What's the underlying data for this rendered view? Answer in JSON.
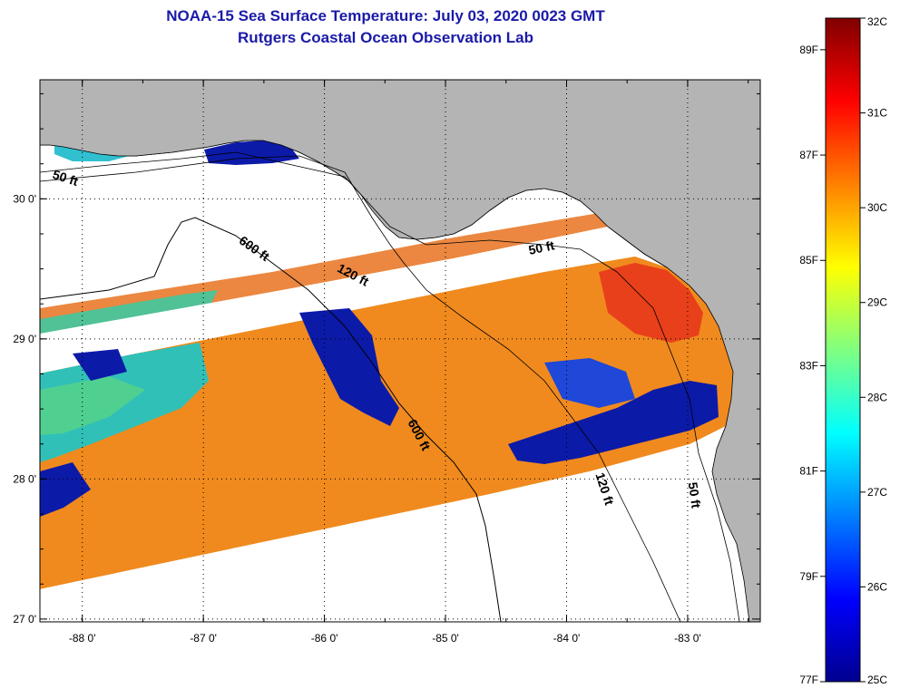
{
  "title": "NOAA-15 Sea Surface Temperature:  July 03, 2020 0023 GMT",
  "subtitle": "Rutgers Coastal Ocean Observation Lab",
  "map": {
    "lon_range": [
      -88.35,
      -82.4
    ],
    "lat_range": [
      26.98,
      30.85
    ],
    "lon_ticks": [
      {
        "value": -88,
        "label": "-88 0'"
      },
      {
        "value": -87,
        "label": "-87 0'"
      },
      {
        "value": -86,
        "label": "-86 0'"
      },
      {
        "value": -85,
        "label": "-85 0'"
      },
      {
        "value": -84,
        "label": "-84 0'"
      },
      {
        "value": -83,
        "label": "-83 0'"
      }
    ],
    "lat_ticks": [
      {
        "value": 30,
        "label": "30 0'"
      },
      {
        "value": 29,
        "label": "29 0'"
      },
      {
        "value": 28,
        "label": "28 0'"
      },
      {
        "value": 27,
        "label": "27 0'"
      }
    ],
    "grid": "dotted",
    "land_color": "#b4b4b4",
    "no_data_color": "#ffffff",
    "contours": [
      {
        "label": "50 ft",
        "lon": -88.15,
        "lat": 30.12,
        "rotate": 18
      },
      {
        "label": "600 ft",
        "lon": -86.6,
        "lat": 29.62,
        "rotate": 35
      },
      {
        "label": "120 ft",
        "lon": -85.78,
        "lat": 29.43,
        "rotate": 28
      },
      {
        "label": "50 ft",
        "lon": -84.2,
        "lat": 29.62,
        "rotate": -12
      },
      {
        "label": "600 ft",
        "lon": -85.25,
        "lat": 28.3,
        "rotate": 62
      },
      {
        "label": "120 ft",
        "lon": -83.72,
        "lat": 27.92,
        "rotate": 72
      },
      {
        "label": "50 ft",
        "lon": -82.98,
        "lat": 27.88,
        "rotate": 82
      }
    ]
  },
  "colorbar": {
    "celsius": [
      {
        "value": 32,
        "label": "32C"
      },
      {
        "value": 31,
        "label": "31C"
      },
      {
        "value": 30,
        "label": "30C"
      },
      {
        "value": 29,
        "label": "29C"
      },
      {
        "value": 28,
        "label": "28C"
      },
      {
        "value": 27,
        "label": "27C"
      },
      {
        "value": 26,
        "label": "26C"
      },
      {
        "value": 25,
        "label": "25C"
      }
    ],
    "fahrenheit": [
      {
        "value": 89,
        "label": "89F"
      },
      {
        "value": 87,
        "label": "87F"
      },
      {
        "value": 85,
        "label": "85F"
      },
      {
        "value": 83,
        "label": "83F"
      },
      {
        "value": 81,
        "label": "81F"
      },
      {
        "value": 79,
        "label": "79F"
      },
      {
        "value": 77,
        "label": "77F"
      }
    ],
    "colors": [
      "#00008f",
      "#0000ff",
      "#0080ff",
      "#00ffff",
      "#80ff80",
      "#ffff00",
      "#ff8000",
      "#ff0000",
      "#800000"
    ]
  }
}
